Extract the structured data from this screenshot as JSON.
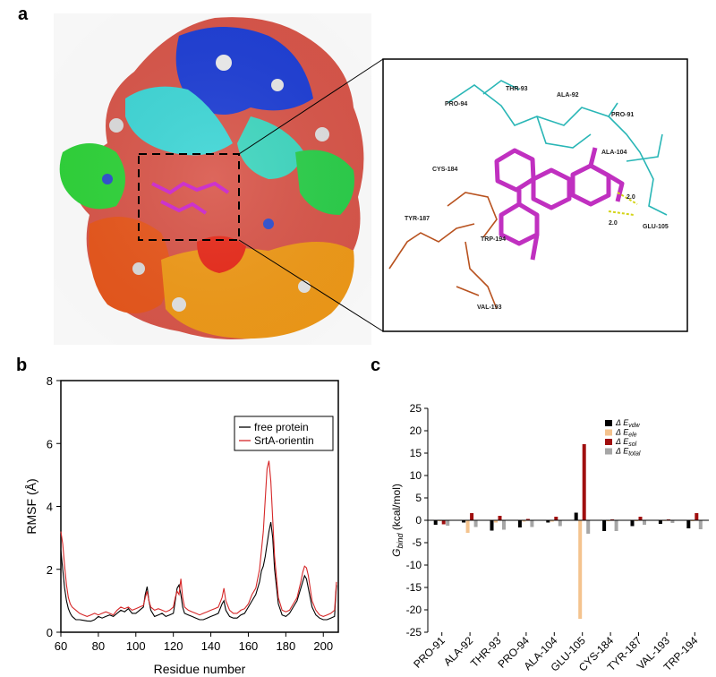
{
  "panels": {
    "a": {
      "letter": "a"
    },
    "b": {
      "letter": "b"
    },
    "c": {
      "letter": "c"
    }
  },
  "structure_labels": [
    {
      "name": "pro-94",
      "text": "PRO-94"
    },
    {
      "name": "thr-93",
      "text": "THR-93"
    },
    {
      "name": "ala-92",
      "text": "ALA-92"
    },
    {
      "name": "pro-91",
      "text": "PRO-91"
    },
    {
      "name": "ala-104",
      "text": "ALA-104"
    },
    {
      "name": "cys-184",
      "text": "CYS-184"
    },
    {
      "name": "tyr-187",
      "text": "TYR-187"
    },
    {
      "name": "trp-194",
      "text": "TRP-194"
    },
    {
      "name": "glu-105",
      "text": "GLU-105"
    },
    {
      "name": "val-193",
      "text": "VAL-193"
    },
    {
      "name": "hbond-1",
      "text": "2.0"
    },
    {
      "name": "hbond-2",
      "text": "2.0"
    }
  ],
  "chart_data": [
    {
      "type": "line",
      "panel": "b",
      "xlabel": "Residue number",
      "ylabel": "RMSF (Å)",
      "xlim": [
        60,
        208
      ],
      "ylim": [
        0,
        8
      ],
      "xticks": [
        60,
        80,
        100,
        120,
        140,
        160,
        180,
        200
      ],
      "yticks": [
        0,
        2,
        4,
        6,
        8
      ],
      "legend_position": "top-right",
      "series": [
        {
          "name": "free protein",
          "color": "#000000",
          "x": [
            60,
            61,
            62,
            63,
            64,
            65,
            66,
            67,
            68,
            70,
            72,
            74,
            76,
            78,
            80,
            82,
            84,
            86,
            88,
            90,
            92,
            94,
            96,
            98,
            100,
            102,
            104,
            105,
            106,
            107,
            108,
            110,
            112,
            114,
            116,
            118,
            120,
            121,
            122,
            123,
            124,
            125,
            126,
            128,
            130,
            132,
            134,
            136,
            138,
            140,
            142,
            144,
            146,
            147,
            148,
            150,
            152,
            154,
            156,
            158,
            160,
            162,
            164,
            166,
            167,
            168,
            169,
            170,
            171,
            172,
            173,
            174,
            176,
            178,
            180,
            182,
            184,
            186,
            188,
            189,
            190,
            191,
            192,
            193,
            194,
            196,
            198,
            200,
            202,
            204,
            206,
            207
          ],
          "y": [
            2.6,
            2.0,
            1.4,
            1.0,
            0.75,
            0.6,
            0.5,
            0.45,
            0.4,
            0.4,
            0.38,
            0.36,
            0.35,
            0.4,
            0.5,
            0.45,
            0.5,
            0.55,
            0.5,
            0.6,
            0.7,
            0.65,
            0.75,
            0.6,
            0.6,
            0.7,
            0.8,
            1.2,
            1.45,
            1.0,
            0.7,
            0.5,
            0.55,
            0.6,
            0.5,
            0.55,
            0.6,
            1.0,
            1.4,
            1.5,
            1.2,
            0.8,
            0.6,
            0.55,
            0.5,
            0.45,
            0.4,
            0.4,
            0.45,
            0.5,
            0.55,
            0.6,
            0.9,
            1.0,
            0.7,
            0.5,
            0.45,
            0.45,
            0.55,
            0.6,
            0.8,
            1.0,
            1.2,
            1.6,
            1.95,
            2.1,
            2.4,
            2.8,
            3.2,
            3.5,
            3.0,
            2.0,
            0.9,
            0.55,
            0.5,
            0.6,
            0.8,
            1.0,
            1.4,
            1.6,
            1.8,
            1.7,
            1.4,
            1.1,
            0.8,
            0.55,
            0.45,
            0.4,
            0.4,
            0.45,
            0.5,
            1.5
          ]
        },
        {
          "name": "SrtA-orientin",
          "color": "#d62728",
          "x": [
            60,
            61,
            62,
            63,
            64,
            65,
            66,
            67,
            68,
            70,
            72,
            74,
            76,
            78,
            80,
            82,
            84,
            86,
            88,
            90,
            92,
            94,
            96,
            98,
            100,
            102,
            104,
            105,
            106,
            107,
            108,
            110,
            112,
            114,
            116,
            118,
            120,
            121,
            122,
            123,
            124,
            125,
            126,
            128,
            130,
            132,
            134,
            136,
            138,
            140,
            142,
            144,
            146,
            147,
            148,
            150,
            152,
            154,
            156,
            158,
            160,
            162,
            164,
            166,
            167,
            168,
            169,
            170,
            171,
            172,
            173,
            174,
            176,
            178,
            180,
            182,
            184,
            186,
            188,
            189,
            190,
            191,
            192,
            193,
            194,
            196,
            198,
            200,
            202,
            204,
            206,
            207
          ],
          "y": [
            3.2,
            2.8,
            2.1,
            1.5,
            1.1,
            0.9,
            0.8,
            0.75,
            0.7,
            0.6,
            0.55,
            0.5,
            0.55,
            0.6,
            0.55,
            0.6,
            0.65,
            0.6,
            0.55,
            0.7,
            0.8,
            0.75,
            0.8,
            0.7,
            0.75,
            0.8,
            0.85,
            1.1,
            1.3,
            1.0,
            0.8,
            0.7,
            0.75,
            0.7,
            0.65,
            0.7,
            0.8,
            1.1,
            1.3,
            1.2,
            1.7,
            1.1,
            0.8,
            0.7,
            0.65,
            0.6,
            0.55,
            0.6,
            0.65,
            0.7,
            0.75,
            0.8,
            1.1,
            1.4,
            1.0,
            0.7,
            0.6,
            0.6,
            0.7,
            0.75,
            0.9,
            1.2,
            1.4,
            2.0,
            2.6,
            3.2,
            4.2,
            5.2,
            5.45,
            4.8,
            3.6,
            2.4,
            1.1,
            0.7,
            0.65,
            0.7,
            0.9,
            1.1,
            1.6,
            1.9,
            2.1,
            2.05,
            1.8,
            1.4,
            1.0,
            0.7,
            0.55,
            0.5,
            0.55,
            0.6,
            0.7,
            1.6
          ]
        }
      ]
    },
    {
      "type": "bar",
      "panel": "c",
      "ylabel": "G_bind (kcal/mol)",
      "ylim": [
        -25,
        25
      ],
      "yticks": [
        -25,
        -20,
        -15,
        -10,
        -5,
        0,
        5,
        10,
        15,
        20,
        25
      ],
      "legend_position": "top-center",
      "categories": [
        "PRO-91",
        "ALA-92",
        "THR-93",
        "PRO-94",
        "ALA-104",
        "GLU-105",
        "CYS-184",
        "TYR-187",
        "VAL-193",
        "TRP-194"
      ],
      "series": [
        {
          "name": "Δ E_vdw",
          "legend_main": "Δ E",
          "legend_sub": "vdw",
          "color": "#000000",
          "values": [
            -1.0,
            -0.5,
            -2.3,
            -1.6,
            -0.5,
            1.7,
            -2.4,
            -1.3,
            -0.8,
            -1.8
          ]
        },
        {
          "name": "Δ E_ele",
          "legend_main": "Δ E",
          "legend_sub": "ele",
          "color": "#f4c38e",
          "values": [
            -0.2,
            -2.8,
            -0.5,
            -0.3,
            -0.3,
            -22.0,
            -0.2,
            -0.2,
            -0.1,
            -0.2
          ]
        },
        {
          "name": "Δ E_sol",
          "legend_main": "Δ E",
          "legend_sub": "sol",
          "color": "#a00f0f",
          "values": [
            -0.9,
            1.6,
            1.0,
            0.3,
            0.8,
            17.0,
            0.2,
            0.8,
            0.2,
            1.6
          ]
        },
        {
          "name": "Δ E_total",
          "legend_main": "Δ E",
          "legend_sub": "total",
          "color": "#a6a6a6",
          "values": [
            -1.2,
            -1.5,
            -2.1,
            -1.5,
            -1.3,
            -3.0,
            -2.4,
            -1.0,
            -0.6,
            -2.0
          ]
        }
      ]
    }
  ]
}
